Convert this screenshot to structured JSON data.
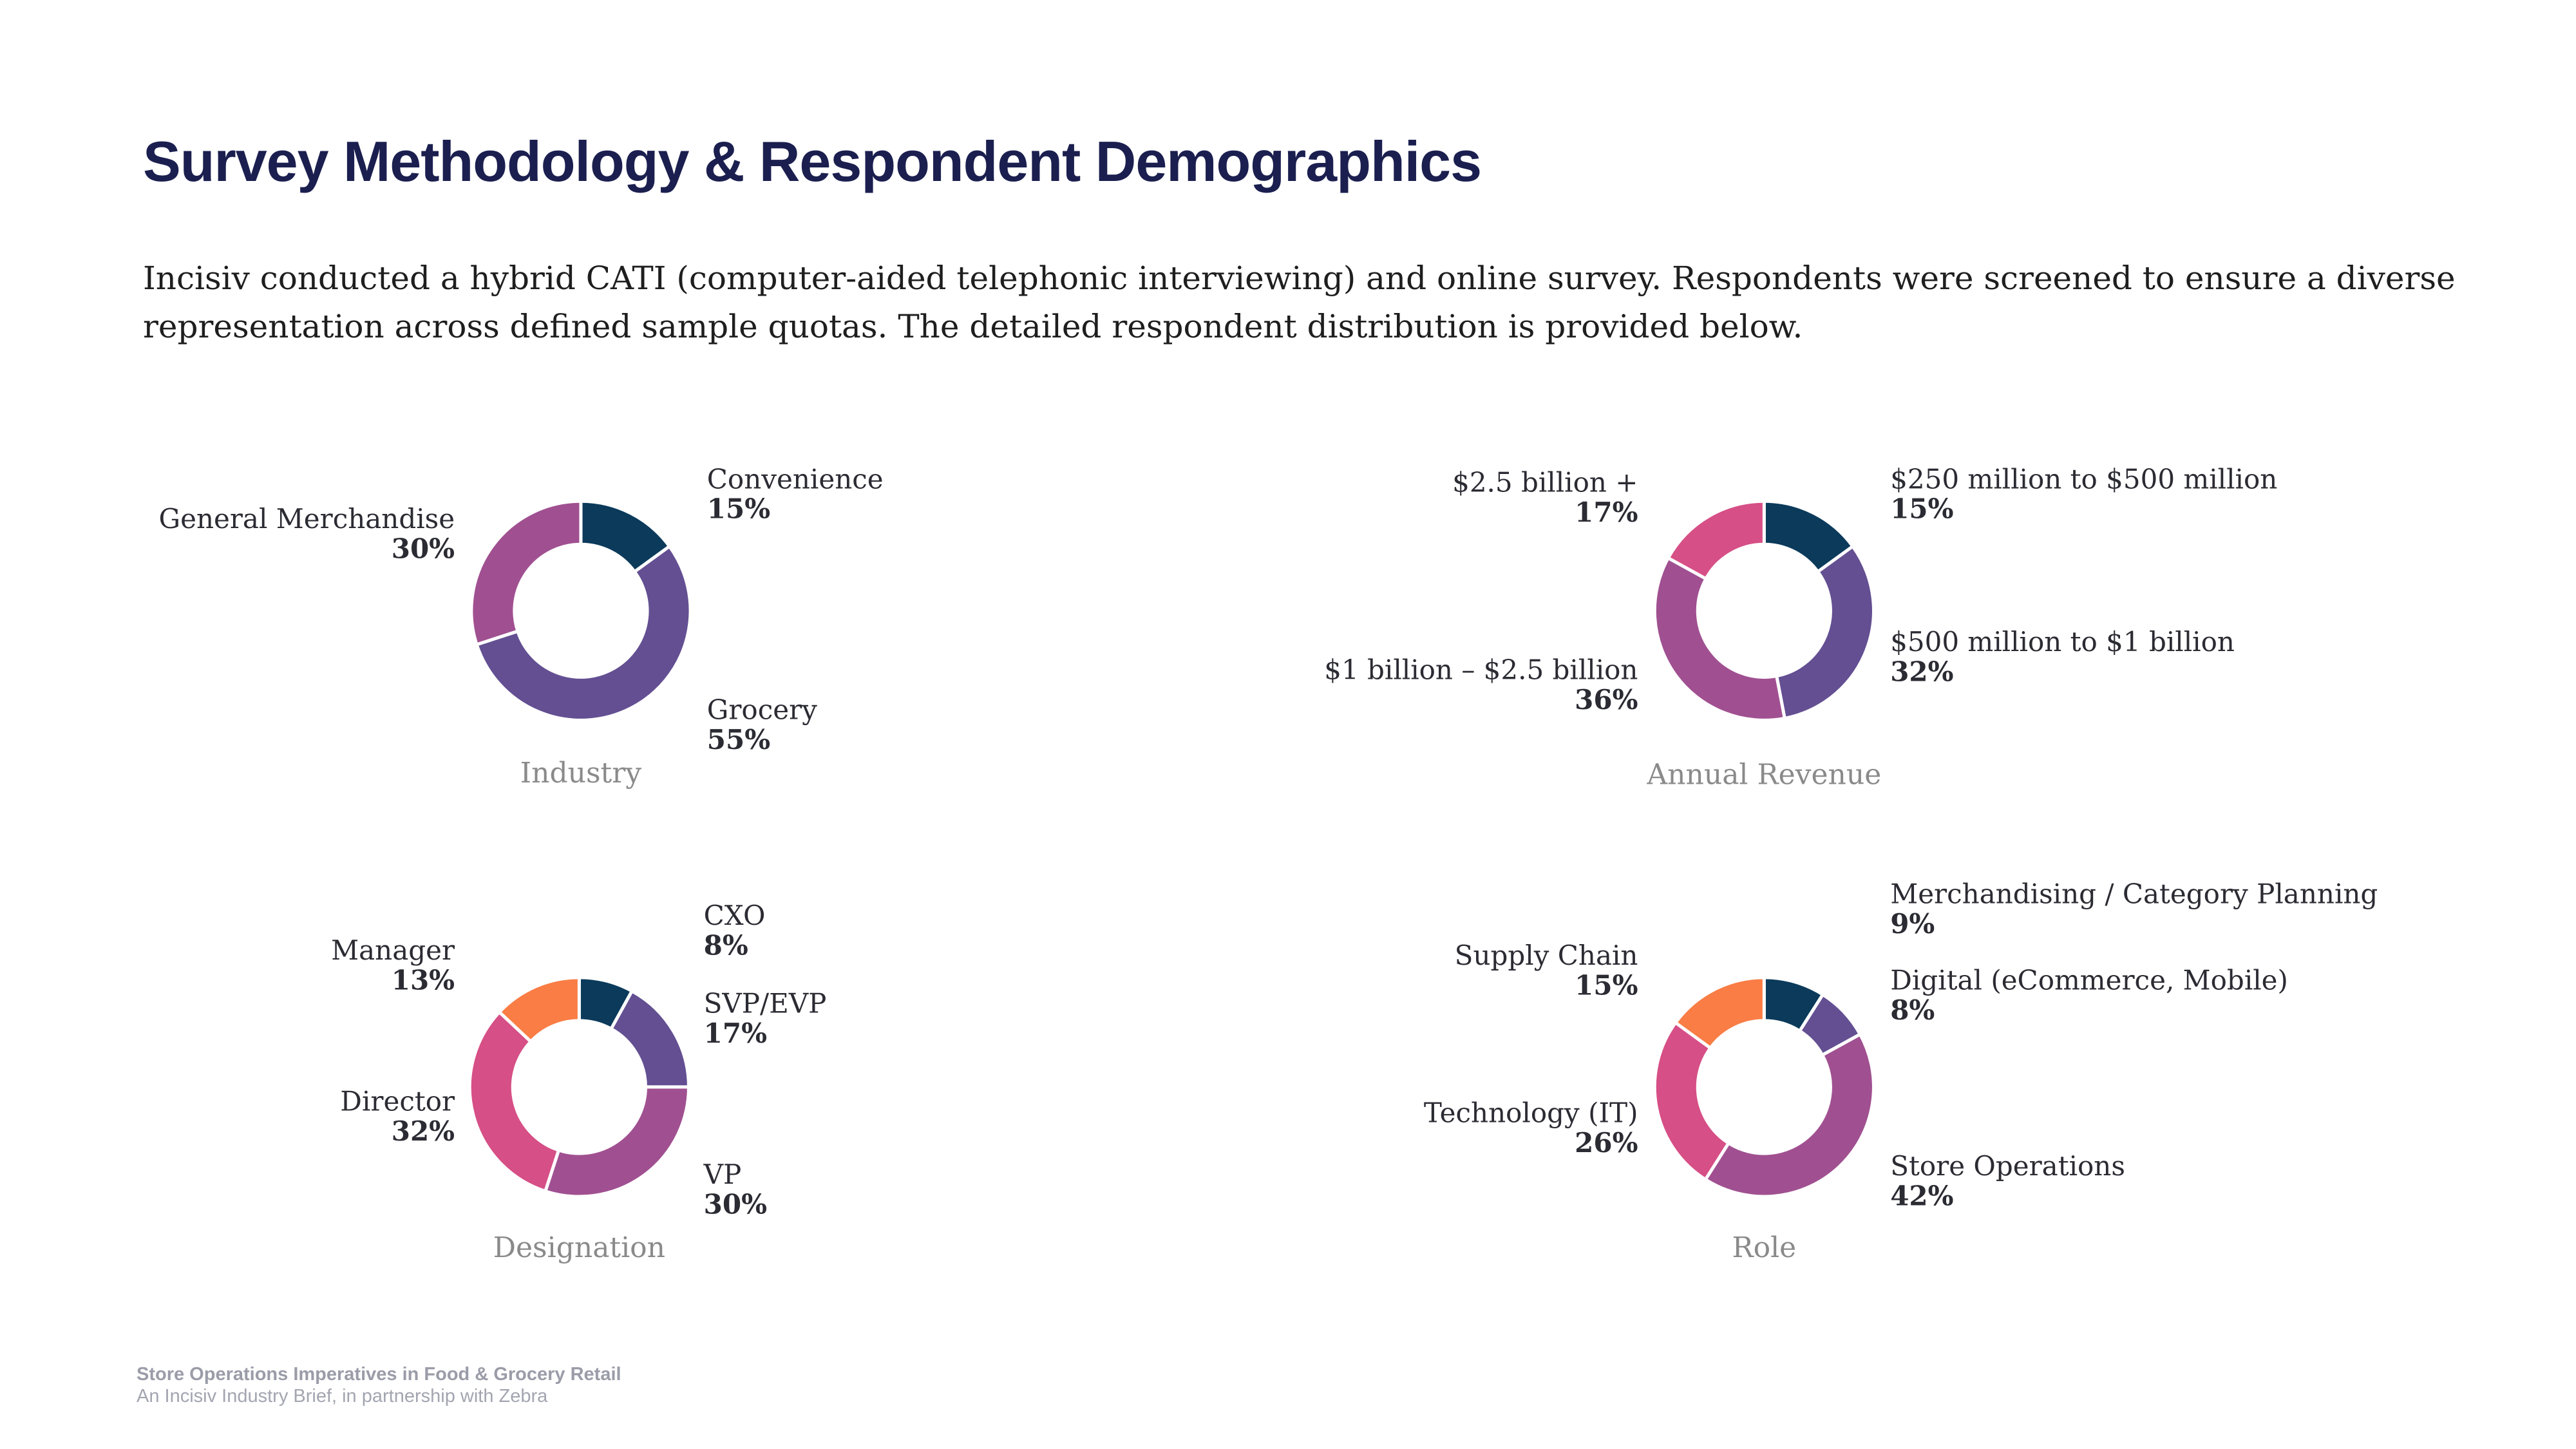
{
  "header": {
    "title": "Survey Methodology & Respondent Demographics",
    "description": "Incisiv conducted a hybrid CATI (computer-aided telephonic interviewing) and online survey. Respondents were screened to ensure a diverse representation across defined sample quotas. The detailed respondent distribution is provided below."
  },
  "footer": {
    "title": "Store Operations Imperatives in Food & Grocery Retail",
    "subtitle": "An Incisiv Industry Brief, in partnership with Zebra"
  },
  "chart_data": [
    {
      "type": "pie",
      "title": "Industry",
      "categories": [
        "Convenience",
        "Grocery",
        "General Merchandise"
      ],
      "values": [
        15,
        55,
        30
      ],
      "value_labels": [
        "15%",
        "55%",
        "30%"
      ],
      "colors": [
        "#0b3a5b",
        "#634f92",
        "#a05091"
      ]
    },
    {
      "type": "pie",
      "title": "Annual Revenue",
      "categories": [
        "$250 million to $500 million",
        "$500 million to $1 billion",
        "$1 billion – $2.5 billion",
        "$2.5 billion +"
      ],
      "values": [
        15,
        32,
        36,
        17
      ],
      "value_labels": [
        "15%",
        "32%",
        "36%",
        "17%"
      ],
      "colors": [
        "#0b3a5b",
        "#634f92",
        "#a05091",
        "#d64f86"
      ]
    },
    {
      "type": "pie",
      "title": "Designation",
      "categories": [
        "CXO",
        "SVP/EVP",
        "VP",
        "Director",
        "Manager"
      ],
      "values": [
        8,
        17,
        30,
        32,
        13
      ],
      "value_labels": [
        "8%",
        "17%",
        "30%",
        "32%",
        "13%"
      ],
      "colors": [
        "#0b3a5b",
        "#634f92",
        "#a05091",
        "#d64f86",
        "#f97d45"
      ]
    },
    {
      "type": "pie",
      "title": "Role",
      "categories": [
        "Merchandising / Category Planning",
        "Digital (eCommerce, Mobile)",
        "Store Operations",
        "Technology (IT)",
        "Supply Chain"
      ],
      "values": [
        9,
        8,
        42,
        26,
        15
      ],
      "value_labels": [
        "9%",
        "8%",
        "42%",
        "26%",
        "15%"
      ],
      "colors": [
        "#0b3a5b",
        "#634f92",
        "#a05091",
        "#d64f86",
        "#f97d45"
      ]
    }
  ]
}
